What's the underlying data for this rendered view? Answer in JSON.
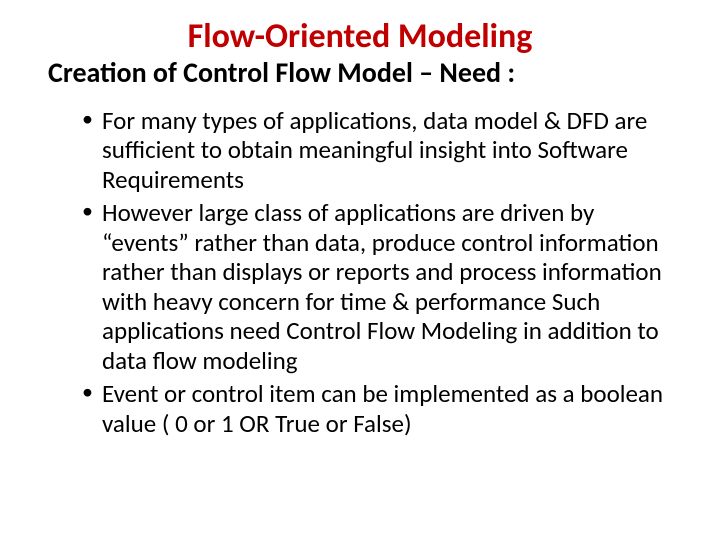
{
  "slide": {
    "title": "Flow-Oriented Modeling",
    "subtitle": "Creation of Control Flow Model – Need :",
    "bullets": [
      "For many types of applications, data model & DFD are sufficient to obtain meaningful insight into Software Requirements",
      "However large class of applications are driven by “events” rather than data, produce control information rather than displays or reports and process information with heavy concern for time & performance Such applications need Control Flow Modeling in addition to data flow modeling",
      "Event or control item can be implemented as a boolean value ( 0 or 1 OR True or False)"
    ],
    "colors": {
      "title_color": "#c00000",
      "text_color": "#000000",
      "background": "#ffffff"
    },
    "typography": {
      "title_fontsize": 34,
      "subtitle_fontsize": 28,
      "body_fontsize": 25,
      "title_weight": 700,
      "subtitle_weight": 700,
      "body_weight": 400
    }
  }
}
